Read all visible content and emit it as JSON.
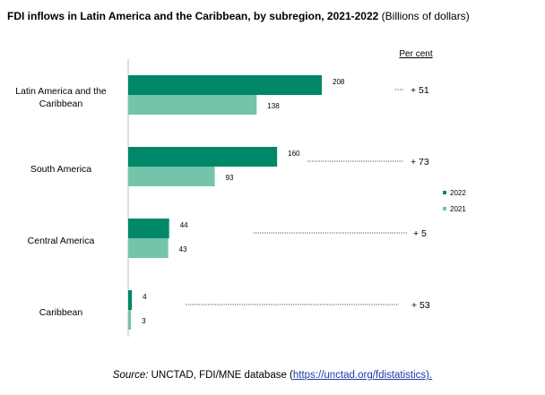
{
  "title": {
    "main": "FDI inflows in Latin America and the Caribbean, by subregion, 2021-2022",
    "unit": "(Billions of dollars)"
  },
  "source": {
    "label": "Source:",
    "text": "UNCTAD, FDI/MNE database (",
    "link": "https://unctad.org/fdistatistics).",
    "link_closing": ""
  },
  "colors": {
    "y2022": "#00876a",
    "y2021": "#74c4aa",
    "dots": "#333333"
  },
  "chart_data": {
    "type": "bar",
    "orientation": "horizontal",
    "categories": [
      "Latin America and the Caribbean",
      "South America",
      "Central America",
      "Caribbean"
    ],
    "category_label_lines": [
      [
        "Latin America and the",
        "Caribbean"
      ],
      [
        "South America"
      ],
      [
        "Central America"
      ],
      [
        "Caribbean"
      ]
    ],
    "series": [
      {
        "name": "2022",
        "values": [
          208,
          160,
          44,
          4
        ]
      },
      {
        "name": "2021",
        "values": [
          138,
          93,
          43,
          3
        ]
      }
    ],
    "change": {
      "header": "Per cent",
      "labels": [
        "+ 51",
        "+ 73",
        "+ 5",
        "+ 53"
      ]
    },
    "legend": [
      "2022",
      "2021"
    ],
    "legend_position": "right",
    "xlim": [
      0,
      250
    ],
    "grid": false
  }
}
